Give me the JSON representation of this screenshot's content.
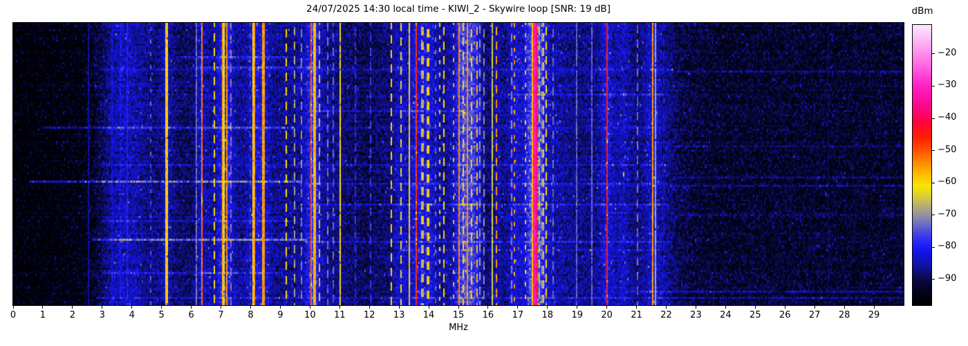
{
  "header": {
    "title": "24/07/2025 14:30 local time - KIWI_2 - Skywire loop [SNR: 19 dB]"
  },
  "axes": {
    "xlabel": "MHz",
    "x_ticks": [
      0,
      1,
      2,
      3,
      4,
      5,
      6,
      7,
      8,
      9,
      10,
      11,
      12,
      13,
      14,
      15,
      16,
      17,
      18,
      19,
      20,
      21,
      22,
      23,
      24,
      25,
      26,
      27,
      28,
      29
    ],
    "x_range": [
      0,
      30
    ]
  },
  "colorbar": {
    "label": "dBm",
    "ticks": [
      -20,
      -30,
      -40,
      -50,
      -60,
      -70,
      -80,
      -90
    ],
    "vmax": -11,
    "vmin": -98
  },
  "chart_data": {
    "type": "heatmap",
    "title": "24/07/2025 14:30 local time - KIWI_2 - Skywire loop [SNR: 19 dB]",
    "xlabel": "MHz",
    "x_range": [
      0,
      30
    ],
    "value_unit": "dBm",
    "value_range": [
      -98,
      -11
    ],
    "colorbar_ticks": [
      -20,
      -30,
      -40,
      -50,
      -60,
      -70,
      -80,
      -90
    ],
    "legend_position": "right-colorbar",
    "grid": false,
    "seed": 7,
    "noise_sigma_db": 6.5,
    "colormap_stops": [
      [
        -98,
        "#000000"
      ],
      [
        -94,
        "#03031a"
      ],
      [
        -90,
        "#0a0a48"
      ],
      [
        -86,
        "#12129e"
      ],
      [
        -82,
        "#1212e2"
      ],
      [
        -79,
        "#2222fc"
      ],
      [
        -76,
        "#4343e6"
      ],
      [
        -73,
        "#6d6dc4"
      ],
      [
        -70,
        "#9494a4"
      ],
      [
        -67,
        "#b9b06e"
      ],
      [
        -64,
        "#dcd232"
      ],
      [
        -61,
        "#f6e800"
      ],
      [
        -58,
        "#ffc400"
      ],
      [
        -54,
        "#ff8f00"
      ],
      [
        -50,
        "#ff5300"
      ],
      [
        -46,
        "#ff2000"
      ],
      [
        -41,
        "#ff0342"
      ],
      [
        -36,
        "#fa0890"
      ],
      [
        -30,
        "#ff20c4"
      ],
      [
        -24,
        "#ff62e2"
      ],
      [
        -17,
        "#ffabf2"
      ],
      [
        -11,
        "#fde9fd"
      ]
    ],
    "noise_floor_profile": [
      [
        0,
        -96.5
      ],
      [
        1.2,
        -96
      ],
      [
        2.2,
        -95
      ],
      [
        2.7,
        -93
      ],
      [
        3.0,
        -89.5
      ],
      [
        3.35,
        -85.5
      ],
      [
        3.7,
        -84
      ],
      [
        4.1,
        -85
      ],
      [
        4.5,
        -87
      ],
      [
        5.0,
        -88.5
      ],
      [
        5.6,
        -89
      ],
      [
        6.1,
        -89
      ],
      [
        6.6,
        -87
      ],
      [
        7.1,
        -85.5
      ],
      [
        7.6,
        -86.5
      ],
      [
        8.3,
        -86.5
      ],
      [
        8.9,
        -87
      ],
      [
        9.5,
        -86.5
      ],
      [
        10.1,
        -85.5
      ],
      [
        10.7,
        -87
      ],
      [
        11.3,
        -88.5
      ],
      [
        11.9,
        -89.8
      ],
      [
        12.5,
        -88.5
      ],
      [
        13.1,
        -87
      ],
      [
        13.7,
        -85.5
      ],
      [
        14.3,
        -86
      ],
      [
        14.9,
        -86
      ],
      [
        15.5,
        -85.5
      ],
      [
        16.0,
        -89.5
      ],
      [
        16.5,
        -88.5
      ],
      [
        17.0,
        -86
      ],
      [
        17.5,
        -83.5
      ],
      [
        18.0,
        -84.5
      ],
      [
        18.5,
        -86
      ],
      [
        19.1,
        -87.5
      ],
      [
        19.6,
        -87
      ],
      [
        20.0,
        -85.5
      ],
      [
        20.6,
        -88
      ],
      [
        21.2,
        -87
      ],
      [
        21.7,
        -86
      ],
      [
        22.1,
        -87.5
      ],
      [
        22.5,
        -90.5
      ],
      [
        23.2,
        -92
      ],
      [
        24.0,
        -92.5
      ],
      [
        26.0,
        -92.3
      ],
      [
        28.0,
        -92.5
      ],
      [
        30.0,
        -92.5
      ]
    ],
    "signals": [
      {
        "f": 2.53,
        "dbm": -86,
        "w": 2,
        "style": "solid"
      },
      {
        "f": 3.32,
        "dbm": -79,
        "w": 1,
        "style": "solid"
      },
      {
        "f": 3.62,
        "dbm": -78,
        "w": 1,
        "style": "solid"
      },
      {
        "f": 3.86,
        "dbm": -77,
        "w": 1,
        "style": "solid"
      },
      {
        "f": 4.65,
        "dbm": -72,
        "w": 1,
        "style": "dot"
      },
      {
        "f": 5.17,
        "dbm": -58,
        "w": 3,
        "style": "solid"
      },
      {
        "f": 6.19,
        "dbm": -70,
        "w": 1,
        "style": "solid"
      },
      {
        "f": 6.35,
        "dbm": -52,
        "w": 2,
        "style": "solid"
      },
      {
        "f": 6.77,
        "dbm": -61,
        "w": 2,
        "style": "dash"
      },
      {
        "f": 7.07,
        "dbm": -56,
        "w": 3,
        "style": "solid"
      },
      {
        "f": 7.19,
        "dbm": -54,
        "w": 2,
        "style": "solid"
      },
      {
        "f": 7.35,
        "dbm": -69,
        "w": 1,
        "style": "dash"
      },
      {
        "f": 8.0,
        "dbm": -73,
        "w": 1,
        "style": "dot"
      },
      {
        "f": 8.12,
        "dbm": -55,
        "w": 4,
        "style": "solid"
      },
      {
        "f": 8.43,
        "dbm": -55,
        "w": 4,
        "style": "solid"
      },
      {
        "f": 9.21,
        "dbm": -61,
        "w": 2,
        "style": "dash"
      },
      {
        "f": 9.46,
        "dbm": -63,
        "w": 2,
        "style": "dash"
      },
      {
        "f": 9.7,
        "dbm": -68,
        "w": 1,
        "style": "dash"
      },
      {
        "f": 10.03,
        "dbm": -50,
        "w": 2,
        "style": "solid"
      },
      {
        "f": 10.15,
        "dbm": -57,
        "w": 4,
        "style": "solid"
      },
      {
        "f": 10.33,
        "dbm": -61,
        "w": 2,
        "style": "dash"
      },
      {
        "f": 10.6,
        "dbm": -70,
        "w": 1,
        "style": "dash"
      },
      {
        "f": 10.78,
        "dbm": -71,
        "w": 1,
        "style": "dash"
      },
      {
        "f": 11.02,
        "dbm": -61,
        "w": 2,
        "style": "solid"
      },
      {
        "f": 11.51,
        "dbm": -75,
        "w": 1,
        "style": "dash"
      },
      {
        "f": 12.05,
        "dbm": -74,
        "w": 1,
        "style": "dash"
      },
      {
        "f": 12.74,
        "dbm": -60,
        "w": 2,
        "style": "dash"
      },
      {
        "f": 13.05,
        "dbm": -58,
        "w": 2,
        "style": "dash"
      },
      {
        "f": 13.35,
        "dbm": -59,
        "w": 2,
        "style": "solid"
      },
      {
        "f": 13.58,
        "dbm": -47,
        "w": 3,
        "style": "solid"
      },
      {
        "f": 13.8,
        "dbm": -66,
        "w": 5,
        "style": "dash"
      },
      {
        "f": 13.97,
        "dbm": -56,
        "w": 3,
        "style": "dash"
      },
      {
        "f": 14.21,
        "dbm": -70,
        "w": 1,
        "style": "dot"
      },
      {
        "f": 14.37,
        "dbm": -61,
        "w": 1,
        "style": "dot"
      },
      {
        "f": 14.51,
        "dbm": -60,
        "w": 2,
        "style": "dash"
      },
      {
        "f": 14.86,
        "dbm": -62,
        "w": 1,
        "style": "dot"
      },
      {
        "f": 15.03,
        "dbm": -53,
        "w": 2,
        "style": "solid"
      },
      {
        "f": 15.15,
        "dbm": -57,
        "w": 2,
        "style": "dash"
      },
      {
        "f": 15.31,
        "dbm": -54,
        "w": 2,
        "style": "solid"
      },
      {
        "f": 15.46,
        "dbm": -58,
        "w": 2,
        "style": "dash"
      },
      {
        "f": 15.62,
        "dbm": -57,
        "w": 2,
        "style": "dash"
      },
      {
        "f": 15.74,
        "dbm": -66,
        "w": 1,
        "style": "dash"
      },
      {
        "f": 15.85,
        "dbm": -68,
        "w": 1,
        "style": "dash"
      },
      {
        "f": 16.12,
        "dbm": -61,
        "w": 1,
        "style": "solid"
      },
      {
        "f": 16.28,
        "dbm": -55,
        "w": 3,
        "style": "dash"
      },
      {
        "f": 16.78,
        "dbm": -68,
        "w": 1,
        "style": "dash"
      },
      {
        "f": 16.88,
        "dbm": -55,
        "w": 2,
        "style": "dot"
      },
      {
        "f": 17.28,
        "dbm": -60,
        "w": 1,
        "style": "dot"
      },
      {
        "f": 17.47,
        "dbm": -52,
        "w": 2,
        "style": "solid"
      },
      {
        "f": 17.58,
        "dbm": -32,
        "w": 5,
        "style": "solid"
      },
      {
        "f": 17.72,
        "dbm": -58,
        "w": 2,
        "style": "dash"
      },
      {
        "f": 17.85,
        "dbm": -65,
        "w": 3,
        "style": "dash"
      },
      {
        "f": 17.96,
        "dbm": -60,
        "w": 2,
        "style": "dash"
      },
      {
        "f": 18.17,
        "dbm": -70,
        "w": 1,
        "style": "dash"
      },
      {
        "f": 18.99,
        "dbm": -71,
        "w": 1,
        "style": "solid"
      },
      {
        "f": 19.49,
        "dbm": -71,
        "w": 1,
        "style": "solid"
      },
      {
        "f": 20.0,
        "dbm": -45,
        "w": 3,
        "style": "solid"
      },
      {
        "f": 20.56,
        "dbm": -58,
        "w": 2,
        "style": "blob"
      },
      {
        "f": 21.02,
        "dbm": -70,
        "w": 1,
        "style": "dash"
      },
      {
        "f": 21.54,
        "dbm": -55,
        "w": 3,
        "style": "solid"
      },
      {
        "f": 21.66,
        "dbm": -65,
        "w": 1,
        "style": "solid"
      },
      {
        "f": 21.93,
        "dbm": -77,
        "w": 2,
        "style": "dash"
      },
      {
        "f": 27.44,
        "dbm": -85,
        "w": 2,
        "style": "solid"
      }
    ],
    "streaks": [
      {
        "y": 0.12,
        "x0": 5.5,
        "x1": 9.2,
        "db": 6
      },
      {
        "y": 0.155,
        "x0": 6.0,
        "x1": 10.3,
        "db": 8
      },
      {
        "y": 0.165,
        "x0": 2.9,
        "x1": 22.2,
        "db": 4
      },
      {
        "y": 0.17,
        "x0": 22.4,
        "x1": 29.9,
        "db": 4
      },
      {
        "y": 0.25,
        "x0": 16.5,
        "x1": 22.0,
        "db": 5
      },
      {
        "y": 0.31,
        "x0": 10.0,
        "x1": 15.2,
        "db": 4
      },
      {
        "y": 0.365,
        "x0": 1.0,
        "x1": 9.4,
        "db": 10
      },
      {
        "y": 0.37,
        "x0": 9.4,
        "x1": 22.0,
        "db": 4
      },
      {
        "y": 0.434,
        "x0": 22.3,
        "x1": 29.9,
        "db": 4
      },
      {
        "y": 0.5,
        "x0": 3.0,
        "x1": 22.0,
        "db": 3
      },
      {
        "y": 0.545,
        "x0": 22.3,
        "x1": 29.9,
        "db": 4
      },
      {
        "y": 0.561,
        "x0": 0.6,
        "x1": 9.6,
        "db": 14
      },
      {
        "y": 0.565,
        "x0": 9.6,
        "x1": 22.0,
        "db": 5
      },
      {
        "y": 0.571,
        "x0": 22.3,
        "x1": 30.0,
        "db": 4
      },
      {
        "y": 0.64,
        "x0": 10.0,
        "x1": 22.0,
        "db": 6
      },
      {
        "y": 0.674,
        "x0": 22.3,
        "x1": 30.0,
        "db": 4
      },
      {
        "y": 0.7,
        "x0": 3.0,
        "x1": 9.5,
        "db": 6
      },
      {
        "y": 0.765,
        "x0": 2.7,
        "x1": 9.8,
        "db": 13
      },
      {
        "y": 0.77,
        "x0": 9.8,
        "x1": 22.1,
        "db": 5
      },
      {
        "y": 0.8,
        "x0": 13.0,
        "x1": 22.0,
        "db": 5
      },
      {
        "y": 0.88,
        "x0": 3.0,
        "x1": 9.0,
        "db": 5
      },
      {
        "y": 0.945,
        "x0": 20.8,
        "x1": 30.0,
        "db": 5
      },
      {
        "y": 0.97,
        "x0": 2.8,
        "x1": 30.0,
        "db": 5
      }
    ]
  }
}
